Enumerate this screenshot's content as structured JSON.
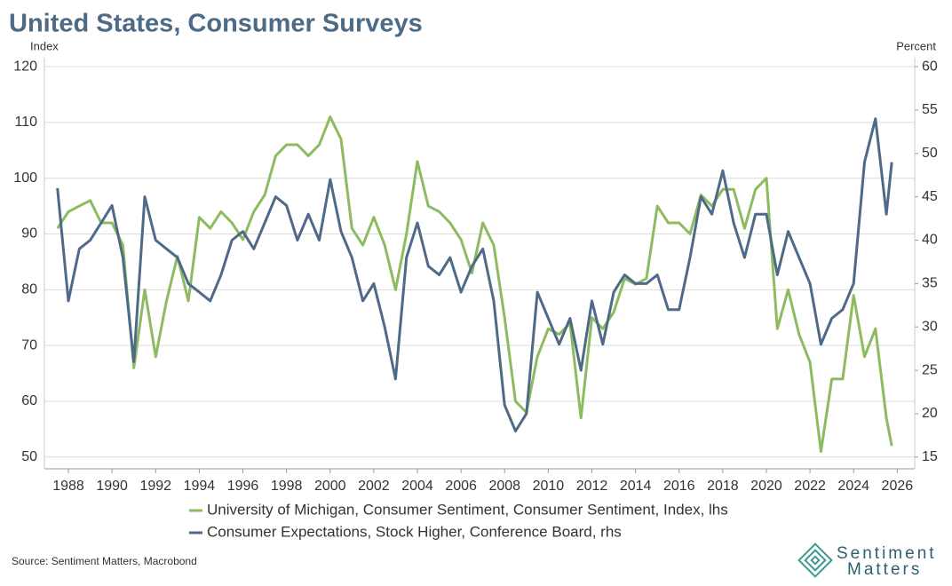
{
  "chart_data": {
    "type": "line",
    "title": "United States, Consumer Surveys",
    "y_label": "Index",
    "y2_label": "Percent",
    "source": "Source: Sentiment Matters, Macrobond",
    "logo": [
      "Sentiment",
      "Matters"
    ],
    "x": [
      1987.5,
      1988,
      1988.5,
      1989,
      1989.5,
      1990,
      1990.5,
      1991,
      1991.5,
      1992,
      1992.5,
      1993,
      1993.5,
      1994,
      1994.5,
      1995,
      1995.5,
      1996,
      1996.5,
      1997,
      1997.5,
      1998,
      1998.5,
      1999,
      1999.5,
      2000,
      2000.5,
      2001,
      2001.5,
      2002,
      2002.5,
      2003,
      2003.5,
      2004,
      2004.5,
      2005,
      2005.5,
      2006,
      2006.5,
      2007,
      2007.5,
      2008,
      2008.5,
      2009,
      2009.5,
      2010,
      2010.5,
      2011,
      2011.5,
      2012,
      2012.5,
      2013,
      2013.5,
      2014,
      2014.5,
      2015,
      2015.5,
      2016,
      2016.5,
      2017,
      2017.5,
      2018,
      2018.5,
      2019,
      2019.5,
      2020,
      2020.5,
      2021,
      2021.5,
      2022,
      2022.5,
      2023,
      2023.5,
      2024,
      2024.5,
      2025,
      2025.5,
      2025.75
    ],
    "xlim": [
      1986.9,
      2026.8
    ],
    "xticks": [
      1988,
      1990,
      1992,
      1994,
      1996,
      1998,
      2000,
      2002,
      2004,
      2006,
      2008,
      2010,
      2012,
      2014,
      2016,
      2018,
      2020,
      2022,
      2024,
      2026
    ],
    "ylim": [
      47.9,
      121.6
    ],
    "yticks": [
      50,
      60,
      70,
      80,
      90,
      100,
      110,
      120
    ],
    "y2lim": [
      13.65,
      61.03
    ],
    "y2ticks": [
      15,
      20,
      25,
      30,
      35,
      40,
      45,
      50,
      55,
      60
    ],
    "grid": true,
    "series": [
      {
        "name": "University of Michigan, Consumer Sentiment, Consumer Sentiment, Index, lhs",
        "color": "#8dbb5f",
        "values": [
          91,
          94,
          95,
          96,
          92,
          92,
          88,
          66,
          80,
          68,
          78,
          86,
          78,
          93,
          91,
          94,
          92,
          89,
          94,
          97,
          104,
          106,
          106,
          104,
          106,
          111,
          107,
          91,
          88,
          93,
          88,
          80,
          90,
          103,
          95,
          94,
          92,
          89,
          83,
          92,
          88,
          75,
          60,
          58,
          68,
          73,
          72,
          74,
          57,
          75,
          73,
          76,
          82,
          81,
          82,
          95,
          92,
          92,
          90,
          97,
          95,
          98,
          98,
          91,
          98,
          100,
          73,
          80,
          72,
          67,
          51,
          64,
          64,
          79,
          68,
          73,
          57,
          52
        ]
      },
      {
        "name": "Consumer Expectations, Stock Higher, Conference Board, rhs",
        "color": "#4e6a88",
        "axis": "y2",
        "values": [
          46,
          33,
          39,
          40,
          42,
          44,
          38,
          26,
          45,
          40,
          39,
          38,
          35,
          34,
          33,
          36,
          40,
          41,
          39,
          42,
          45,
          44,
          40,
          43,
          40,
          47,
          41,
          38,
          33,
          35,
          30,
          24,
          38,
          42,
          37,
          36,
          38,
          34,
          37,
          39,
          33,
          21,
          18,
          20,
          34,
          31,
          28,
          31,
          25,
          33,
          28,
          34,
          36,
          35,
          35,
          36,
          32,
          32,
          38,
          45,
          43,
          48,
          42,
          38,
          43,
          43,
          36,
          41,
          38,
          35,
          28,
          31,
          32,
          35,
          49,
          54,
          43,
          49
        ]
      }
    ]
  }
}
